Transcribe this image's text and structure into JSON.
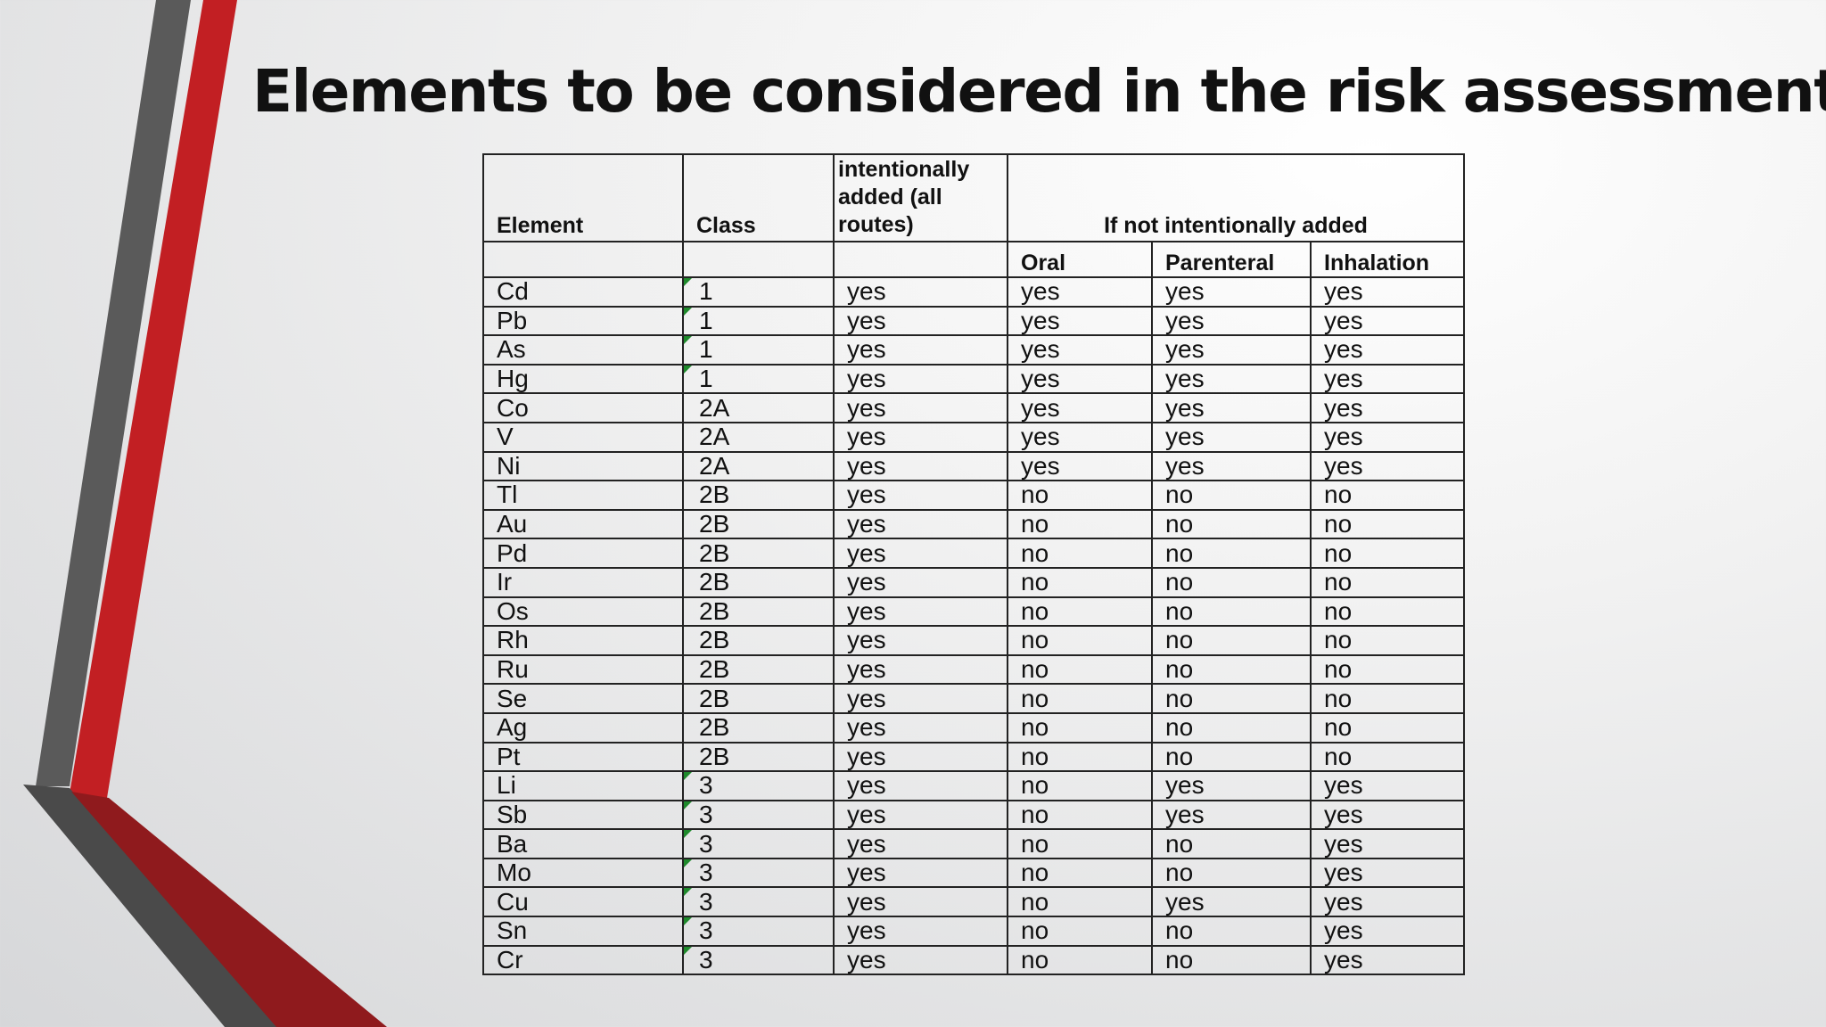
{
  "title": "Elements to be considered in the risk assessment",
  "colors": {
    "accent_red": "#c21f23",
    "accent_gray": "#5a5a5a",
    "flag_green": "#1f8a2c"
  },
  "table": {
    "headers": {
      "element": "Element",
      "class": "Class",
      "intentionally_added": "intentionally added (all routes)",
      "not_intentionally_added": "If not intentionally added",
      "oral": "Oral",
      "parenteral": "Parenteral",
      "inhalation": "Inhalation"
    },
    "rows": [
      {
        "element": "Cd",
        "class": "1",
        "added": "yes",
        "oral": "yes",
        "parenteral": "yes",
        "inhalation": "yes",
        "flag": true
      },
      {
        "element": "Pb",
        "class": "1",
        "added": "yes",
        "oral": "yes",
        "parenteral": "yes",
        "inhalation": "yes",
        "flag": true
      },
      {
        "element": "As",
        "class": "1",
        "added": "yes",
        "oral": "yes",
        "parenteral": "yes",
        "inhalation": "yes",
        "flag": true
      },
      {
        "element": "Hg",
        "class": "1",
        "added": "yes",
        "oral": "yes",
        "parenteral": "yes",
        "inhalation": "yes",
        "flag": true
      },
      {
        "element": "Co",
        "class": "2A",
        "added": "yes",
        "oral": "yes",
        "parenteral": "yes",
        "inhalation": "yes",
        "flag": false
      },
      {
        "element": "V",
        "class": "2A",
        "added": "yes",
        "oral": "yes",
        "parenteral": "yes",
        "inhalation": "yes",
        "flag": false
      },
      {
        "element": "Ni",
        "class": "2A",
        "added": "yes",
        "oral": "yes",
        "parenteral": "yes",
        "inhalation": "yes",
        "flag": false
      },
      {
        "element": "Tl",
        "class": "2B",
        "added": "yes",
        "oral": "no",
        "parenteral": "no",
        "inhalation": "no",
        "flag": false
      },
      {
        "element": "Au",
        "class": "2B",
        "added": "yes",
        "oral": "no",
        "parenteral": "no",
        "inhalation": "no",
        "flag": false
      },
      {
        "element": "Pd",
        "class": "2B",
        "added": "yes",
        "oral": "no",
        "parenteral": "no",
        "inhalation": "no",
        "flag": false
      },
      {
        "element": "Ir",
        "class": "2B",
        "added": "yes",
        "oral": "no",
        "parenteral": "no",
        "inhalation": "no",
        "flag": false
      },
      {
        "element": "Os",
        "class": "2B",
        "added": "yes",
        "oral": "no",
        "parenteral": "no",
        "inhalation": "no",
        "flag": false
      },
      {
        "element": "Rh",
        "class": "2B",
        "added": "yes",
        "oral": "no",
        "parenteral": "no",
        "inhalation": "no",
        "flag": false
      },
      {
        "element": "Ru",
        "class": "2B",
        "added": "yes",
        "oral": "no",
        "parenteral": "no",
        "inhalation": "no",
        "flag": false
      },
      {
        "element": "Se",
        "class": "2B",
        "added": "yes",
        "oral": "no",
        "parenteral": "no",
        "inhalation": "no",
        "flag": false
      },
      {
        "element": "Ag",
        "class": "2B",
        "added": "yes",
        "oral": "no",
        "parenteral": "no",
        "inhalation": "no",
        "flag": false
      },
      {
        "element": "Pt",
        "class": "2B",
        "added": "yes",
        "oral": "no",
        "parenteral": "no",
        "inhalation": "no",
        "flag": false
      },
      {
        "element": "Li",
        "class": "3",
        "added": "yes",
        "oral": "no",
        "parenteral": "yes",
        "inhalation": "yes",
        "flag": true
      },
      {
        "element": "Sb",
        "class": "3",
        "added": "yes",
        "oral": "no",
        "parenteral": "yes",
        "inhalation": "yes",
        "flag": true
      },
      {
        "element": "Ba",
        "class": "3",
        "added": "yes",
        "oral": "no",
        "parenteral": "no",
        "inhalation": "yes",
        "flag": true
      },
      {
        "element": "Mo",
        "class": "3",
        "added": "yes",
        "oral": "no",
        "parenteral": "no",
        "inhalation": "yes",
        "flag": true
      },
      {
        "element": "Cu",
        "class": "3",
        "added": "yes",
        "oral": "no",
        "parenteral": "yes",
        "inhalation": "yes",
        "flag": true
      },
      {
        "element": "Sn",
        "class": "3",
        "added": "yes",
        "oral": "no",
        "parenteral": "no",
        "inhalation": "yes",
        "flag": true
      },
      {
        "element": "Cr",
        "class": "3",
        "added": "yes",
        "oral": "no",
        "parenteral": "no",
        "inhalation": "yes",
        "flag": true
      }
    ]
  }
}
